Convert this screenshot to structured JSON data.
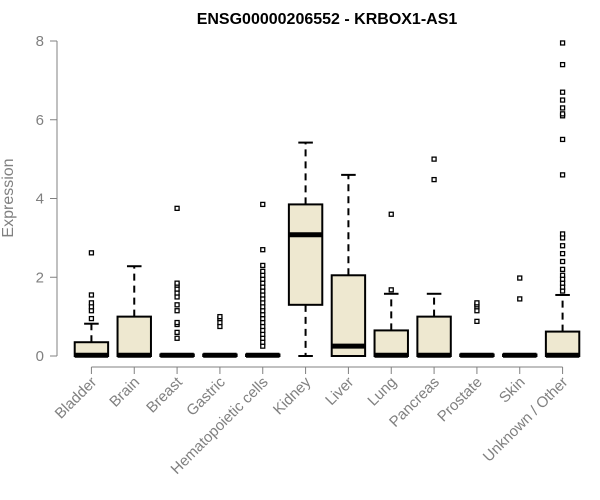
{
  "chart_data": {
    "type": "boxplot",
    "title": "ENSG00000206552 - KRBOX1-AS1",
    "xlabel": "",
    "ylabel": "Expression",
    "ylim": [
      0,
      8
    ],
    "yticks": [
      0,
      2,
      4,
      6,
      8
    ],
    "colors": {
      "box_fill": "#EEE8D0",
      "stroke": "#000000",
      "axis": "#808080"
    },
    "categories": [
      "Bladder",
      "Brain",
      "Breast",
      "Gastric",
      "Hematopoietic cells",
      "Kidney",
      "Liver",
      "Lung",
      "Pancreas",
      "Prostate",
      "Skin",
      "Unknown / Other"
    ],
    "boxes": [
      {
        "q1": 0,
        "median": 0.02,
        "q3": 0.35,
        "whisker_low": 0,
        "whisker_high": 0.82,
        "outliers": [
          0.95,
          1.15,
          1.25,
          1.35,
          1.55,
          2.62
        ]
      },
      {
        "q1": 0,
        "median": 0.02,
        "q3": 1.0,
        "whisker_low": 0,
        "whisker_high": 2.28,
        "outliers": []
      },
      {
        "q1": 0,
        "median": 0.02,
        "q3": 0.02,
        "whisker_low": 0,
        "whisker_high": 0.02,
        "outliers": [
          0.45,
          0.6,
          0.8,
          0.85,
          1.15,
          1.3,
          1.5,
          1.6,
          1.7,
          1.8,
          1.85,
          3.75
        ]
      },
      {
        "q1": 0,
        "median": 0.02,
        "q3": 0.02,
        "whisker_low": 0,
        "whisker_high": 0.02,
        "outliers": [
          0.75,
          0.85,
          0.95,
          1.0
        ]
      },
      {
        "q1": 0,
        "median": 0.02,
        "q3": 0.02,
        "whisker_low": 0,
        "whisker_high": 0.02,
        "outliers": [
          0.25,
          0.35,
          0.45,
          0.55,
          0.65,
          0.75,
          0.85,
          0.95,
          1.05,
          1.15,
          1.25,
          1.35,
          1.45,
          1.55,
          1.65,
          1.75,
          1.85,
          1.95,
          2.05,
          2.15,
          2.3,
          2.7,
          3.85
        ]
      },
      {
        "q1": 1.3,
        "median": 3.08,
        "q3": 3.85,
        "whisker_low": 0,
        "whisker_high": 5.42,
        "outliers": []
      },
      {
        "q1": 0,
        "median": 0.25,
        "q3": 2.05,
        "whisker_low": 0,
        "whisker_high": 4.6,
        "outliers": []
      },
      {
        "q1": 0,
        "median": 0.02,
        "q3": 0.65,
        "whisker_low": 0,
        "whisker_high": 1.58,
        "outliers": [
          1.68,
          3.6
        ]
      },
      {
        "q1": 0,
        "median": 0.02,
        "q3": 1.0,
        "whisker_low": 0,
        "whisker_high": 1.58,
        "outliers": [
          4.48,
          5.0
        ]
      },
      {
        "q1": 0,
        "median": 0.02,
        "q3": 0.02,
        "whisker_low": 0,
        "whisker_high": 0.02,
        "outliers": [
          0.88,
          1.15,
          1.25,
          1.3,
          1.35
        ]
      },
      {
        "q1": 0,
        "median": 0.02,
        "q3": 0.02,
        "whisker_low": 0,
        "whisker_high": 0.02,
        "outliers": [
          1.45,
          1.98
        ]
      },
      {
        "q1": 0,
        "median": 0.02,
        "q3": 0.62,
        "whisker_low": 0,
        "whisker_high": 1.55,
        "outliers": [
          1.65,
          1.75,
          1.85,
          1.95,
          2.05,
          2.2,
          2.4,
          2.6,
          2.8,
          3.0,
          3.1,
          4.6,
          5.5,
          6.1,
          6.15,
          6.3,
          6.5,
          6.7,
          7.4,
          7.95
        ]
      }
    ]
  }
}
